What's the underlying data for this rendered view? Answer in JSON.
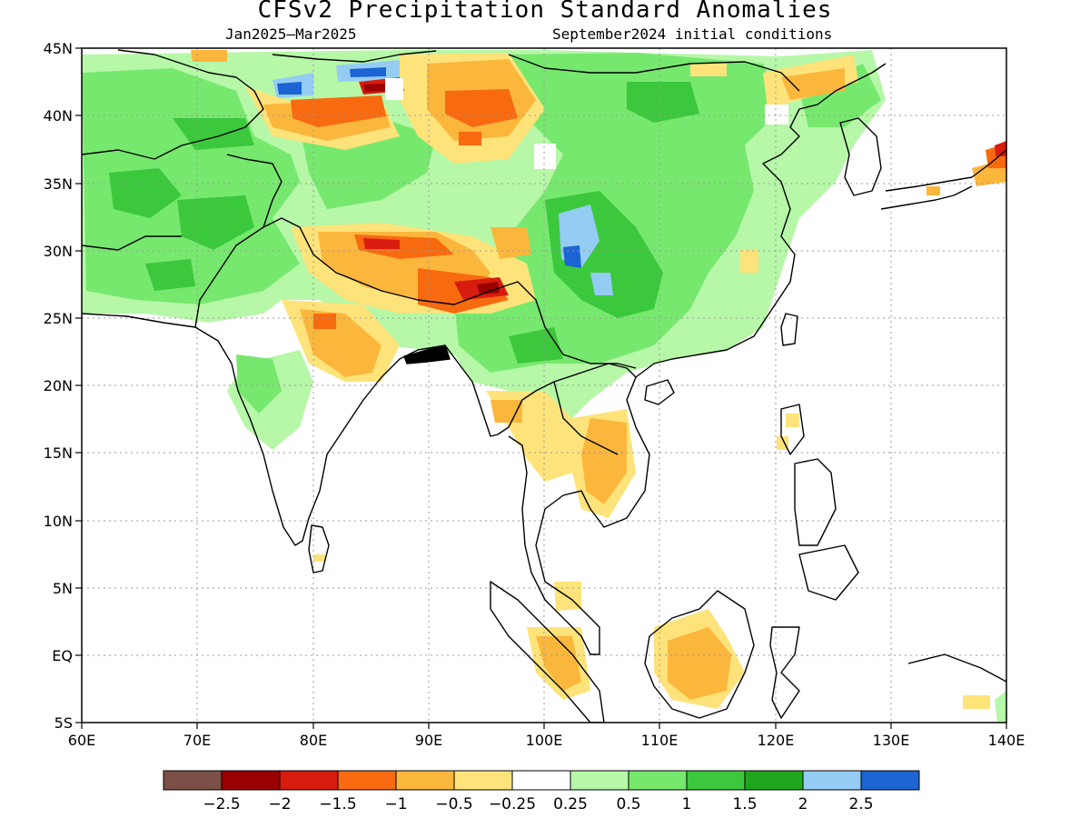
{
  "header": {
    "title": "CFSv2 Precipitation Standard Anomalies",
    "period": "Jan2025–Mar2025",
    "init": "September2024 initial conditions"
  },
  "axes": {
    "lon_ticks": [
      "60E",
      "70E",
      "80E",
      "90E",
      "100E",
      "110E",
      "120E",
      "130E",
      "140E"
    ],
    "lat_ticks": [
      "45N",
      "40N",
      "35N",
      "30N",
      "25N",
      "20N",
      "15N",
      "10N",
      "5N",
      "EQ",
      "5S"
    ]
  },
  "colorbar": {
    "colors": [
      "#7b4f45",
      "#9b0000",
      "#d81c10",
      "#f76a10",
      "#fbb63c",
      "#fde37a",
      "#ffffff",
      "#b6f7a8",
      "#76e86e",
      "#3cc83c",
      "#1ea71e",
      "#94ccf4",
      "#1c63d4"
    ],
    "labels": [
      "−2.5",
      "−2",
      "−1.5",
      "−1",
      "−0.5",
      "−0.25",
      "0.25",
      "0.5",
      "1",
      "1.5",
      "2",
      "2.5"
    ]
  },
  "legend_values": [
    "−2.5",
    "−2",
    "−1.5",
    "−1",
    "−0.5",
    "−0.25",
    "0.25",
    "0.5",
    "1",
    "1.5",
    "2",
    "2.5"
  ]
}
